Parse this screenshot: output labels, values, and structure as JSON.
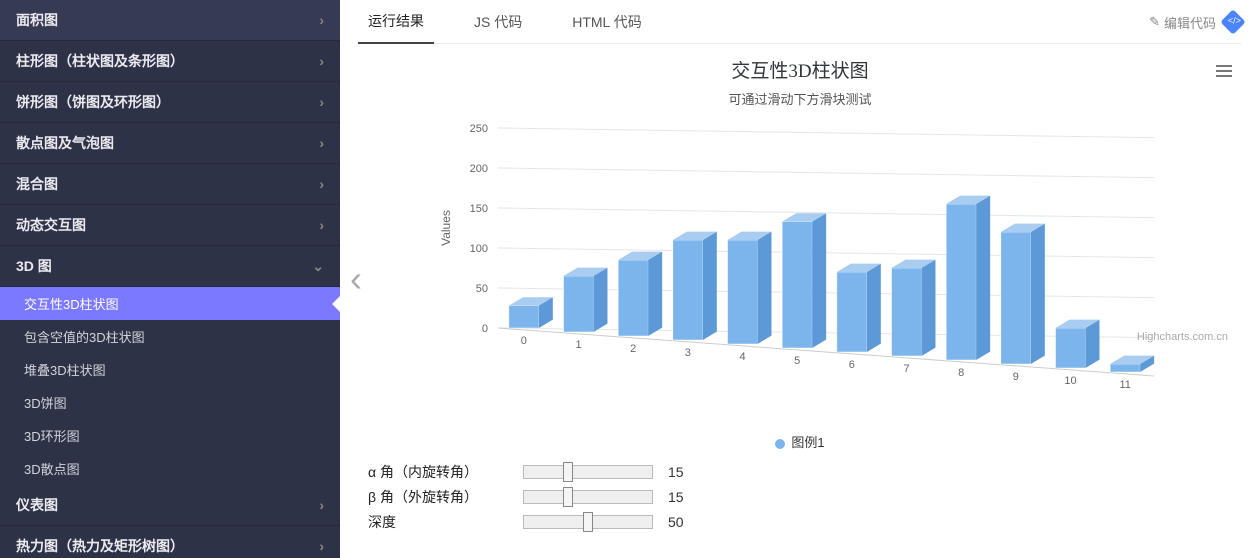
{
  "sidebar": {
    "categories": [
      {
        "label": "面积图",
        "expanded": false
      },
      {
        "label": "柱形图（柱状图及条形图）",
        "expanded": false
      },
      {
        "label": "饼形图（饼图及环形图）",
        "expanded": false
      },
      {
        "label": "散点图及气泡图",
        "expanded": false
      },
      {
        "label": "混合图",
        "expanded": false
      },
      {
        "label": "动态交互图",
        "expanded": false
      },
      {
        "label": "3D 图",
        "expanded": true,
        "children": [
          {
            "label": "交互性3D柱状图",
            "active": true
          },
          {
            "label": "包含空值的3D柱状图"
          },
          {
            "label": "堆叠3D柱状图"
          },
          {
            "label": "3D饼图"
          },
          {
            "label": "3D环形图"
          },
          {
            "label": "3D散点图"
          }
        ]
      },
      {
        "label": "仪表图",
        "expanded": false
      },
      {
        "label": "热力图（热力及矩形树图）",
        "expanded": false
      }
    ]
  },
  "tabs": {
    "items": [
      {
        "label": "运行结果",
        "active": true
      },
      {
        "label": "JS 代码"
      },
      {
        "label": "HTML 代码"
      }
    ],
    "edit_label": "编辑代码"
  },
  "chart": {
    "type": "bar3d",
    "title": "交互性3D柱状图",
    "subtitle": "可通过滑动下方滑块测试",
    "ylabel": "Values",
    "ylim": [
      0,
      250
    ],
    "ytick_step": 50,
    "yticks": [
      "0",
      "50",
      "100",
      "150",
      "200",
      "250"
    ],
    "categories": [
      "0",
      "1",
      "2",
      "3",
      "4",
      "5",
      "6",
      "7",
      "8",
      "9",
      "10",
      "11"
    ],
    "values": [
      28,
      70,
      95,
      125,
      130,
      158,
      100,
      110,
      195,
      165,
      50,
      10
    ],
    "bar_color": "#7cb5ec",
    "bar_side_color": "#5c99d6",
    "bar_width": 0.58,
    "background_color": "#ffffff",
    "grid_color": "#e6e6e6",
    "title_fontsize": 19,
    "label_fontsize": 12,
    "legend_label": "图例1",
    "credits": "Highcharts.com.cn",
    "alpha": 15,
    "beta": 15,
    "depth": 50
  },
  "controls": {
    "alpha_label": "α 角（内旋转角）",
    "beta_label": "β 角（外旋转角）",
    "depth_label": "深度",
    "alpha_value": "15",
    "beta_value": "15",
    "depth_value": "50"
  }
}
